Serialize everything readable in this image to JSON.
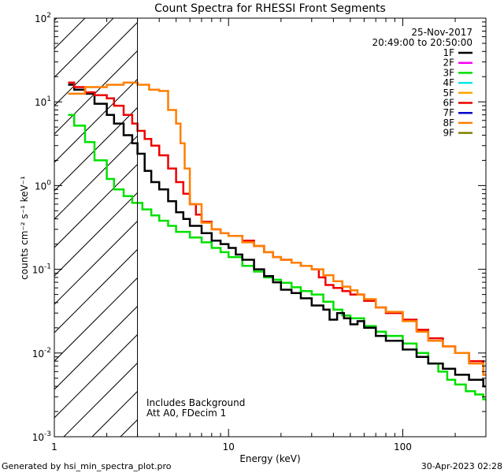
{
  "chart_data": {
    "type": "line",
    "title": "Count Spectra for RHESSI Front Segments",
    "xlabel": "Energy (keV)",
    "ylabel": "counts cm⁻² s⁻¹ keV⁻¹",
    "xscale": "log",
    "yscale": "log",
    "xlim": [
      1,
      300
    ],
    "ylim": [
      0.001,
      100
    ],
    "xticks": [
      {
        "value": 1,
        "label": "1"
      },
      {
        "value": 10,
        "label": "10"
      },
      {
        "value": 100,
        "label": "100"
      }
    ],
    "yticks": [
      {
        "value": 0.001,
        "base": "10",
        "exp": "-3"
      },
      {
        "value": 0.01,
        "base": "10",
        "exp": "-2"
      },
      {
        "value": 0.1,
        "base": "10",
        "exp": "-1"
      },
      {
        "value": 1,
        "base": "10",
        "exp": "0"
      },
      {
        "value": 10,
        "base": "10",
        "exp": "1"
      },
      {
        "value": 100,
        "base": "10",
        "exp": "2"
      }
    ],
    "hatched_region": {
      "from": 1,
      "to": 3
    },
    "date": "25-Nov-2017",
    "time_range": "20:49:00 to 20:50:00",
    "annotations": [
      "Includes Background",
      "Att A0, FDecim 1"
    ],
    "legend_position": "top-right",
    "legend": [
      {
        "name": "1F",
        "color": "#000000"
      },
      {
        "name": "2F",
        "color": "#ff00ff"
      },
      {
        "name": "3F",
        "color": "#00e000"
      },
      {
        "name": "4F",
        "color": "#00e5ee"
      },
      {
        "name": "5F",
        "color": "#ffa500"
      },
      {
        "name": "6F",
        "color": "#ee0000"
      },
      {
        "name": "7F",
        "color": "#0000cc"
      },
      {
        "name": "8F",
        "color": "#ff7f00"
      },
      {
        "name": "9F",
        "color": "#808000"
      }
    ],
    "series": [
      {
        "name": "3F",
        "color": "#00e000",
        "width": 2.5,
        "points": [
          [
            1.2,
            7
          ],
          [
            1.3,
            5.2
          ],
          [
            1.5,
            3.3
          ],
          [
            1.7,
            2
          ],
          [
            2,
            1.2
          ],
          [
            2.2,
            0.9
          ],
          [
            2.5,
            0.75
          ],
          [
            2.8,
            0.62
          ],
          [
            3.2,
            0.52
          ],
          [
            3.6,
            0.44
          ],
          [
            4,
            0.38
          ],
          [
            4.5,
            0.33
          ],
          [
            5,
            0.28
          ],
          [
            6,
            0.24
          ],
          [
            7,
            0.21
          ],
          [
            8,
            0.18
          ],
          [
            9,
            0.16
          ],
          [
            10,
            0.14
          ],
          [
            12,
            0.11
          ],
          [
            14,
            0.094
          ],
          [
            16,
            0.08
          ],
          [
            18,
            0.075
          ],
          [
            20,
            0.069
          ],
          [
            23,
            0.061
          ],
          [
            26,
            0.055
          ],
          [
            30,
            0.05
          ],
          [
            35,
            0.041
          ],
          [
            40,
            0.033
          ],
          [
            45,
            0.028
          ],
          [
            50,
            0.026
          ],
          [
            60,
            0.021
          ],
          [
            70,
            0.018
          ],
          [
            80,
            0.016
          ],
          [
            100,
            0.013
          ],
          [
            120,
            0.01
          ],
          [
            140,
            0.0075
          ],
          [
            160,
            0.006
          ],
          [
            180,
            0.0048
          ],
          [
            200,
            0.0042
          ],
          [
            230,
            0.0035
          ],
          [
            260,
            0.0032
          ],
          [
            290,
            0.0028
          ]
        ]
      },
      {
        "name": "1F",
        "color": "#000000",
        "width": 2.5,
        "points": [
          [
            1.2,
            16
          ],
          [
            1.3,
            14
          ],
          [
            1.5,
            12.5
          ],
          [
            1.7,
            9.5
          ],
          [
            2,
            7
          ],
          [
            2.2,
            5.5
          ],
          [
            2.5,
            4
          ],
          [
            2.8,
            3.2
          ],
          [
            3,
            2.4
          ],
          [
            3.3,
            1.5
          ],
          [
            3.6,
            1.1
          ],
          [
            4,
            0.9
          ],
          [
            4.5,
            0.65
          ],
          [
            5,
            0.48
          ],
          [
            5.5,
            0.4
          ],
          [
            6,
            0.33
          ],
          [
            7,
            0.27
          ],
          [
            8,
            0.22
          ],
          [
            9,
            0.2
          ],
          [
            10,
            0.18
          ],
          [
            11,
            0.15
          ],
          [
            12,
            0.13
          ],
          [
            14,
            0.1
          ],
          [
            16,
            0.083
          ],
          [
            18,
            0.07
          ],
          [
            20,
            0.057
          ],
          [
            23,
            0.052
          ],
          [
            26,
            0.045
          ],
          [
            30,
            0.037
          ],
          [
            35,
            0.033
          ],
          [
            38,
            0.025
          ],
          [
            42,
            0.03
          ],
          [
            46,
            0.026
          ],
          [
            50,
            0.022
          ],
          [
            55,
            0.024
          ],
          [
            60,
            0.02
          ],
          [
            70,
            0.016
          ],
          [
            80,
            0.014
          ],
          [
            100,
            0.011
          ],
          [
            120,
            0.009
          ],
          [
            140,
            0.0075
          ],
          [
            170,
            0.0065
          ],
          [
            200,
            0.0055
          ],
          [
            240,
            0.0048
          ],
          [
            290,
            0.004
          ]
        ]
      },
      {
        "name": "6F",
        "color": "#ee0000",
        "width": 2.5,
        "points": [
          [
            1.2,
            17
          ],
          [
            1.3,
            15
          ],
          [
            1.5,
            13
          ],
          [
            1.7,
            12
          ],
          [
            2,
            11
          ],
          [
            2.2,
            9
          ],
          [
            2.5,
            7
          ],
          [
            2.8,
            5.5
          ],
          [
            3,
            4.5
          ],
          [
            3.3,
            3.6
          ],
          [
            3.6,
            3
          ],
          [
            4,
            2.3
          ],
          [
            4.5,
            1.6
          ],
          [
            5,
            1.1
          ],
          [
            5.5,
            0.8
          ],
          [
            6,
            0.6
          ],
          [
            6.5,
            0.45
          ],
          [
            7,
            0.37
          ],
          [
            8,
            0.3
          ],
          [
            9,
            0.27
          ],
          [
            10,
            0.25
          ],
          [
            12,
            0.22
          ],
          [
            14,
            0.19
          ],
          [
            16,
            0.16
          ],
          [
            18,
            0.14
          ],
          [
            20,
            0.13
          ],
          [
            23,
            0.12
          ],
          [
            26,
            0.11
          ],
          [
            30,
            0.1
          ],
          [
            33,
            0.08
          ],
          [
            36,
            0.065
          ],
          [
            40,
            0.06
          ],
          [
            45,
            0.055
          ],
          [
            50,
            0.05
          ],
          [
            60,
            0.042
          ],
          [
            70,
            0.035
          ],
          [
            80,
            0.03
          ],
          [
            100,
            0.025
          ],
          [
            120,
            0.019
          ],
          [
            140,
            0.015
          ],
          [
            170,
            0.012
          ],
          [
            200,
            0.01
          ],
          [
            240,
            0.008
          ],
          [
            290,
            0.0055
          ]
        ]
      },
      {
        "name": "8F",
        "color": "#ff7f00",
        "width": 2.5,
        "points": [
          [
            1.2,
            12.5
          ],
          [
            1.5,
            15
          ],
          [
            2,
            16
          ],
          [
            2.5,
            17
          ],
          [
            3,
            16
          ],
          [
            3.5,
            14
          ],
          [
            4,
            13.5
          ],
          [
            4.5,
            8
          ],
          [
            5,
            5.5
          ],
          [
            5.3,
            3.2
          ],
          [
            5.6,
            1.6
          ],
          [
            6,
            0.6
          ],
          [
            7,
            0.36
          ],
          [
            8,
            0.3
          ],
          [
            9,
            0.27
          ],
          [
            10,
            0.25
          ],
          [
            12,
            0.21
          ],
          [
            14,
            0.19
          ],
          [
            16,
            0.16
          ],
          [
            18,
            0.14
          ],
          [
            20,
            0.13
          ],
          [
            23,
            0.12
          ],
          [
            26,
            0.11
          ],
          [
            30,
            0.1
          ],
          [
            35,
            0.085
          ],
          [
            40,
            0.072
          ],
          [
            45,
            0.062
          ],
          [
            50,
            0.056
          ],
          [
            55,
            0.05
          ],
          [
            60,
            0.044
          ],
          [
            70,
            0.035
          ],
          [
            80,
            0.031
          ],
          [
            100,
            0.024
          ],
          [
            120,
            0.018
          ],
          [
            140,
            0.014
          ],
          [
            170,
            0.012
          ],
          [
            200,
            0.01
          ],
          [
            240,
            0.0075
          ],
          [
            290,
            0.0055
          ]
        ]
      }
    ]
  }
}
